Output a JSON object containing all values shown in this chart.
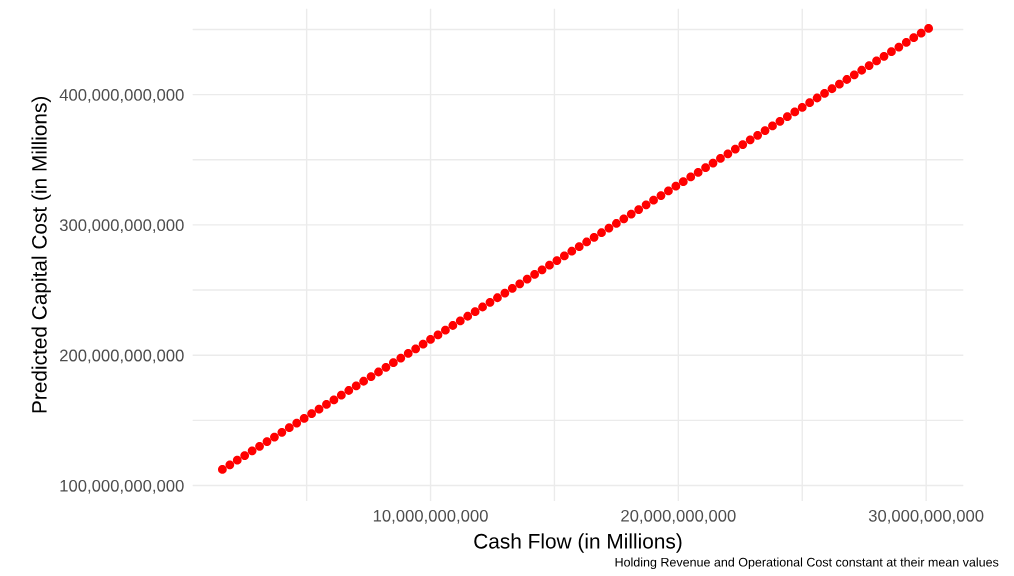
{
  "chart_data": {
    "type": "scatter",
    "xlabel": "Cash Flow (in Millions)",
    "ylabel": "Predicted Capital Cost (in Millions)",
    "annotations": [
      "Holding Revenue and Operational Cost constant at their mean values"
    ],
    "x": [
      1600000000.0,
      1900000000.0,
      2200000000.0,
      2500000000.0,
      2800000000.0,
      3100000000.0,
      3400000000.0,
      3700000000.0,
      4000000000.0,
      4300000000.0,
      4600000000.0,
      4900000000.0,
      5200000000.0,
      5500000000.0,
      5800000000.0,
      6100000000.0,
      6400000000.0,
      6700000000.0,
      7000000000.0,
      7300000000.0,
      7600000000.0,
      7900000000.0,
      8200000000.0,
      8500000000.0,
      8800000000.0,
      9100000000.0,
      9400000000.0,
      9700000000.0,
      10000000000.0,
      10300000000.0,
      10600000000.0,
      10900000000.0,
      11200000000.0,
      11500000000.0,
      11800000000.0,
      12100000000.0,
      12400000000.0,
      12700000000.0,
      13000000000.0,
      13300000000.0,
      13600000000.0,
      13900000000.0,
      14200000000.0,
      14500000000.0,
      14800000000.0,
      15100000000.0,
      15400000000.0,
      15700000000.0,
      16000000000.0,
      16300000000.0,
      16600000000.0,
      16900000000.0,
      17200000000.0,
      17500000000.0,
      17800000000.0,
      18100000000.0,
      18400000000.0,
      18700000000.0,
      19000000000.0,
      19300000000.0,
      19600000000.0,
      19900000000.0,
      20200000000.0,
      20500000000.0,
      20800000000.0,
      21100000000.0,
      21400000000.0,
      21700000000.0,
      22000000000.0,
      22300000000.0,
      22600000000.0,
      22900000000.0,
      23200000000.0,
      23500000000.0,
      23800000000.0,
      24100000000.0,
      24400000000.0,
      24700000000.0,
      25000000000.0,
      25300000000.0,
      25600000000.0,
      25900000000.0,
      26200000000.0,
      26500000000.0,
      26800000000.0,
      27100000000.0,
      27400000000.0,
      27700000000.0,
      28000000000.0,
      28300000000.0,
      28600000000.0,
      28900000000.0,
      29200000000.0,
      29500000000.0,
      29800000000.0,
      30100000000.0
    ],
    "series": [
      {
        "color": "#ff0000",
        "values": [
          112300000000.0,
          115900000000.0,
          119400000000.0,
          123000000000.0,
          126600000000.0,
          130100000000.0,
          133700000000.0,
          137200000000.0,
          140800000000.0,
          144400000000.0,
          147900000000.0,
          151500000000.0,
          155100000000.0,
          158600000000.0,
          162200000000.0,
          165700000000.0,
          169300000000.0,
          172900000000.0,
          176400000000.0,
          180000000000.0,
          183600000000.0,
          187100000000.0,
          190700000000.0,
          194300000000.0,
          197800000000.0,
          201400000000.0,
          204900000000.0,
          208500000000.0,
          212100000000.0,
          215600000000.0,
          219200000000.0,
          222800000000.0,
          226300000000.0,
          229900000000.0,
          233400000000.0,
          237000000000.0,
          240600000000.0,
          244100000000.0,
          247700000000.0,
          251300000000.0,
          254800000000.0,
          258400000000.0,
          262000000000.0,
          265500000000.0,
          269100000000.0,
          272600000000.0,
          276200000000.0,
          279800000000.0,
          283300000000.0,
          286900000000.0,
          290500000000.0,
          294000000000.0,
          297600000000.0,
          301100000000.0,
          304700000000.0,
          308300000000.0,
          311800000000.0,
          315400000000.0,
          319000000000.0,
          322500000000.0,
          326100000000.0,
          329700000000.0,
          333200000000.0,
          336800000000.0,
          340300000000.0,
          343900000000.0,
          347500000000.0,
          351000000000.0,
          354600000000.0,
          358200000000.0,
          361700000000.0,
          365300000000.0,
          368800000000.0,
          372400000000.0,
          376000000000.0,
          379500000000.0,
          383100000000.0,
          386700000000.0,
          390200000000.0,
          393800000000.0,
          397400000000.0,
          400900000000.0,
          404500000000.0,
          408000000000.0,
          411600000000.0,
          415200000000.0,
          418700000000.0,
          422300000000.0,
          425900000000.0,
          429400000000.0,
          433000000000.0,
          436500000000.0,
          440100000000.0,
          443700000000.0,
          447200000000.0,
          450800000000.0
        ]
      }
    ],
    "marker": "circle",
    "xlim": [
      400000000.0,
      31500000000.0
    ],
    "ylim": [
      88000000000.0,
      466000000000.0
    ],
    "xticks": [
      {
        "value": 5000000000.0,
        "label": null
      },
      {
        "value": 10000000000.0,
        "label": "10,000,000,000"
      },
      {
        "value": 15000000000.0,
        "label": null
      },
      {
        "value": 20000000000.0,
        "label": "20,000,000,000"
      },
      {
        "value": 25000000000.0,
        "label": null
      },
      {
        "value": 30000000000.0,
        "label": "30,000,000,000"
      }
    ],
    "yticks": [
      {
        "value": 100000000000.0,
        "label": "100,000,000,000"
      },
      {
        "value": 150000000000.0,
        "label": null
      },
      {
        "value": 200000000000.0,
        "label": "200,000,000,000"
      },
      {
        "value": 250000000000.0,
        "label": null
      },
      {
        "value": 300000000000.0,
        "label": "300,000,000,000"
      },
      {
        "value": 350000000000.0,
        "label": null
      },
      {
        "value": 400000000000.0,
        "label": "400,000,000,000"
      },
      {
        "value": 450000000000.0,
        "label": null
      }
    ],
    "grid": true
  }
}
